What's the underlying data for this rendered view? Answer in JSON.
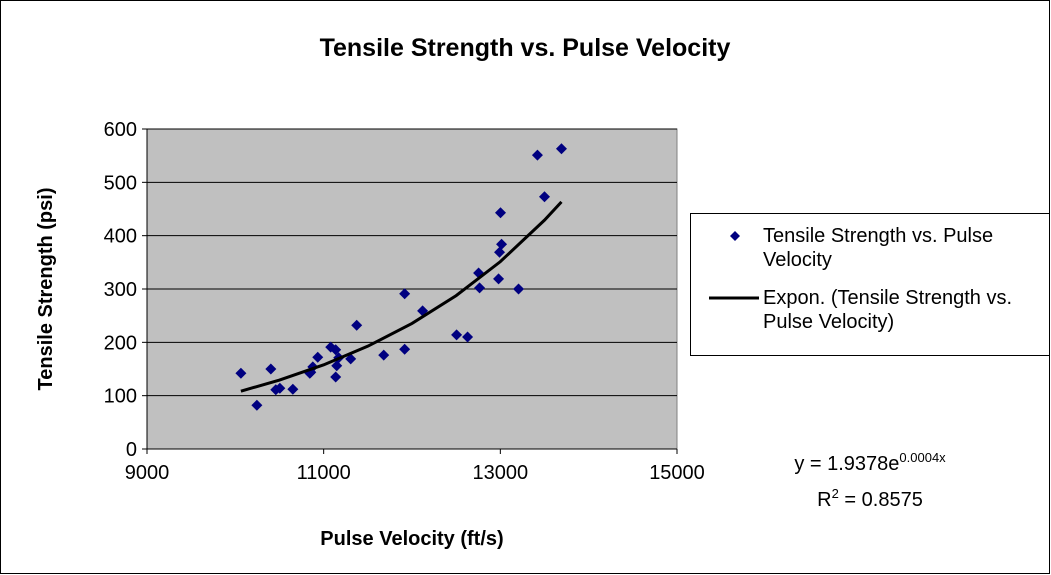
{
  "chart_data": {
    "type": "scatter",
    "title": "Tensile Strength vs. Pulse Velocity",
    "x_label": "Pulse Velocity (ft/s)",
    "y_label": "Tensile Strength (psi)",
    "xlim": [
      9000,
      15000
    ],
    "xticks": [
      9000,
      11000,
      13000,
      15000
    ],
    "ylim": [
      0,
      600
    ],
    "yticks": [
      0,
      100,
      200,
      300,
      400,
      500,
      600
    ],
    "grid": true,
    "legend": "right",
    "series": [
      {
        "name": "Tensile Strength vs. Pulse Velocity",
        "color": "#000080",
        "x": [
          10063,
          10244,
          10402,
          10458,
          10504,
          10651,
          10843,
          10854,
          10877,
          10933,
          11080,
          11136,
          11136,
          11148,
          11170,
          11306,
          11374,
          11680,
          11917,
          11917,
          12120,
          12505,
          12629,
          12754,
          12765,
          12980,
          12991,
          13014,
          13002,
          13206,
          13420,
          13500,
          13692
        ],
        "values": [
          142,
          82,
          150,
          111,
          114,
          112,
          142,
          144,
          154,
          172,
          191,
          186,
          135,
          156,
          171,
          169,
          232,
          176,
          291,
          187,
          259,
          214,
          210,
          330,
          302,
          319,
          369,
          384,
          443,
          300,
          551,
          473,
          563
        ]
      },
      {
        "name": "Expon. (Tensile Strength vs. Pulse Velocity)",
        "color": "#000000",
        "x": [
          10063,
          10500,
          11000,
          11500,
          12000,
          12500,
          13000,
          13500,
          13692
        ],
        "values": [
          108.5,
          129.2,
          157.8,
          192.8,
          235.4,
          287.6,
          351.3,
          429.1,
          463.4
        ]
      }
    ],
    "equation": {
      "text": "y = 1.9378e",
      "exponent": "0.0004x"
    },
    "r_squared": {
      "text": "R",
      "exponent": "2",
      "rest": " = 0.8575"
    }
  }
}
